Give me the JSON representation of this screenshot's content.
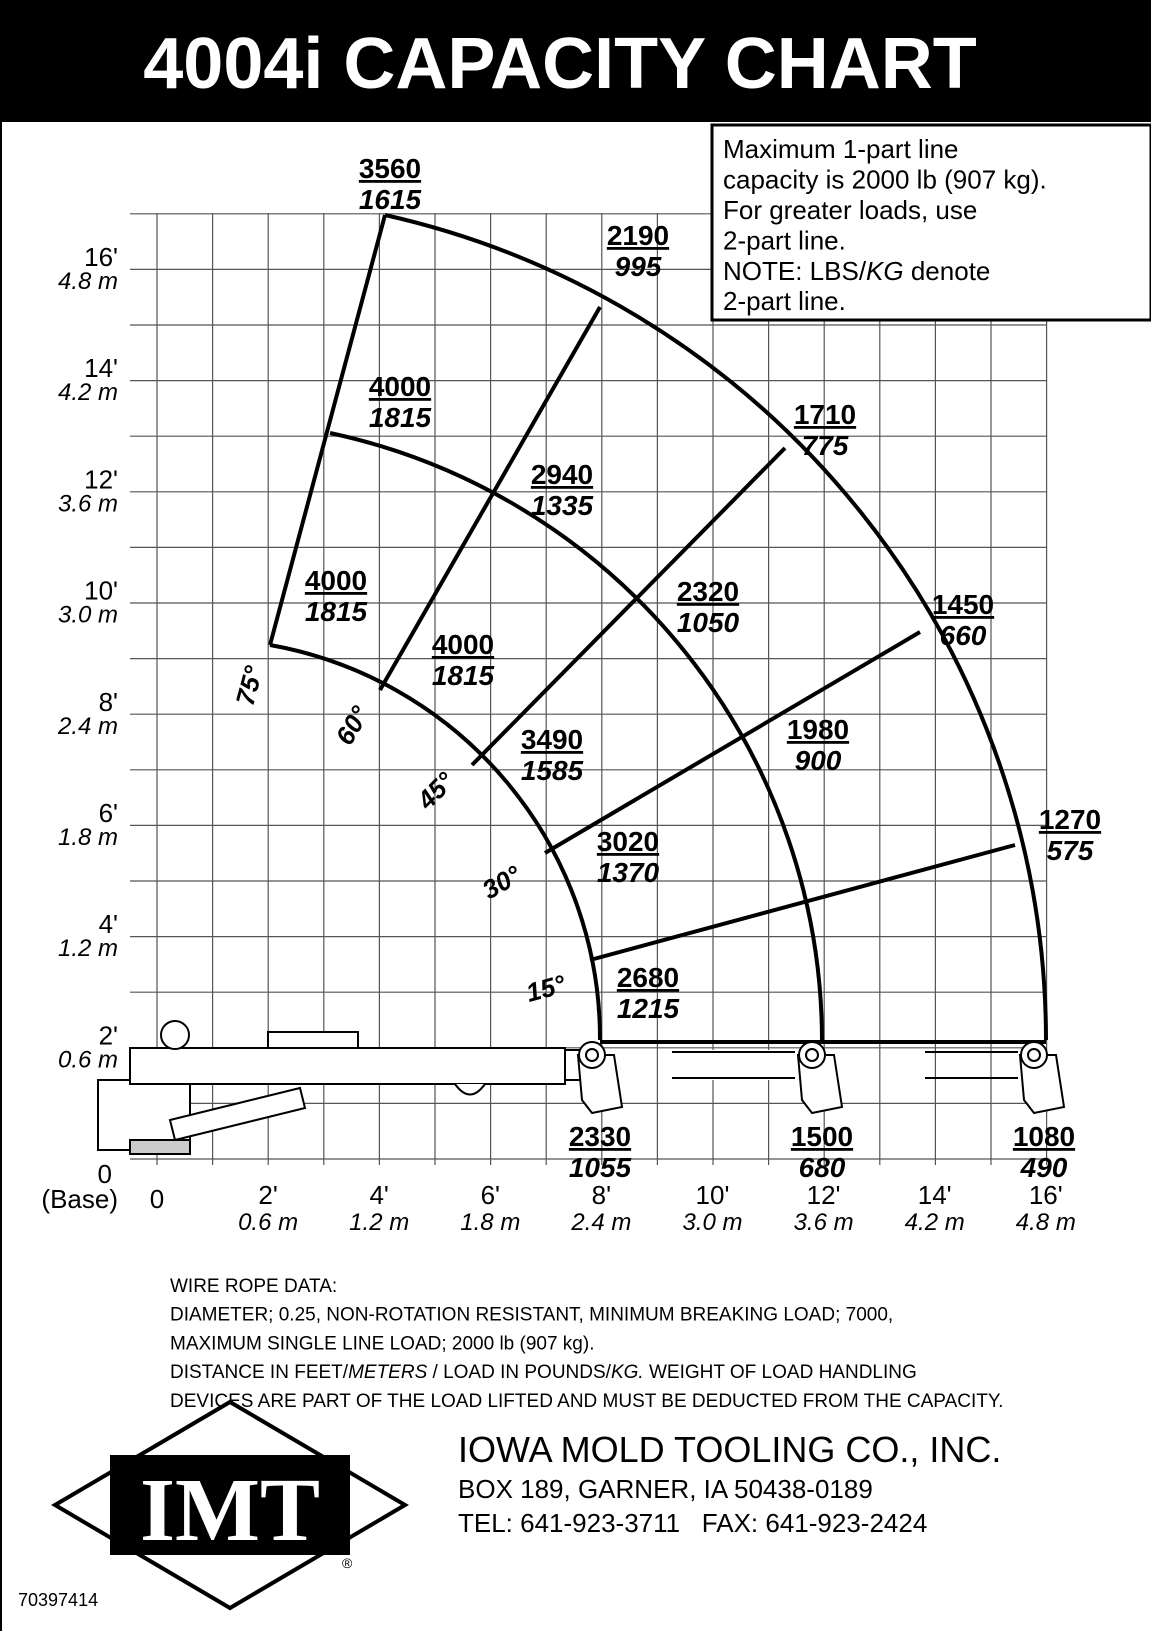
{
  "header": {
    "title": "4004i CAPACITY CHART"
  },
  "note": {
    "lines": [
      "Maximum 1-part line",
      "capacity is 2000 lb (907 kg).",
      "For greater loads, use",
      "2-part line."
    ],
    "note_prefix": "NOTE: LBS/",
    "note_kg": "KG",
    "note_suffix": " denote",
    "note_last": "2-part line."
  },
  "capacities": [
    {
      "lb": "3560",
      "kg": "1615"
    },
    {
      "lb": "2190",
      "kg": "995"
    },
    {
      "lb": "4000",
      "kg": "1815"
    },
    {
      "lb": "1710",
      "kg": "775"
    },
    {
      "lb": "2940",
      "kg": "1335"
    },
    {
      "lb": "4000",
      "kg": "1815"
    },
    {
      "lb": "2320",
      "kg": "1050"
    },
    {
      "lb": "1450",
      "kg": "660"
    },
    {
      "lb": "4000",
      "kg": "1815"
    },
    {
      "lb": "1980",
      "kg": "900"
    },
    {
      "lb": "3490",
      "kg": "1585"
    },
    {
      "lb": "1270",
      "kg": "575"
    },
    {
      "lb": "3020",
      "kg": "1370"
    },
    {
      "lb": "2680",
      "kg": "1215"
    },
    {
      "lb": "2330",
      "kg": "1055"
    },
    {
      "lb": "1500",
      "kg": "680"
    },
    {
      "lb": "1080",
      "kg": "490"
    }
  ],
  "angles": [
    "75°",
    "60°",
    "45°",
    "30°",
    "15°"
  ],
  "y_axis": [
    {
      "ft": "16'",
      "m": "4.8 m"
    },
    {
      "ft": "14'",
      "m": "4.2 m"
    },
    {
      "ft": "12'",
      "m": "3.6 m"
    },
    {
      "ft": "10'",
      "m": "3.0 m"
    },
    {
      "ft": "8'",
      "m": "2.4 m"
    },
    {
      "ft": "6'",
      "m": "1.8 m"
    },
    {
      "ft": "4'",
      "m": "1.2 m"
    },
    {
      "ft": "2'",
      "m": "0.6 m"
    }
  ],
  "y_base": {
    "ft": "0",
    "label": "(Base)"
  },
  "x_axis": [
    {
      "ft": "0",
      "m": null
    },
    {
      "ft": "2'",
      "m": "0.6 m"
    },
    {
      "ft": "4'",
      "m": "1.2 m"
    },
    {
      "ft": "6'",
      "m": "1.8 m"
    },
    {
      "ft": "8'",
      "m": "2.4 m"
    },
    {
      "ft": "10'",
      "m": "3.0 m"
    },
    {
      "ft": "12'",
      "m": "3.6 m"
    },
    {
      "ft": "14'",
      "m": "4.2 m"
    },
    {
      "ft": "16'",
      "m": "4.8 m"
    }
  ],
  "wire_rope": {
    "lines": [
      "WIRE ROPE DATA:",
      "DIAMETER; 0.25, NON-ROTATION RESISTANT, MINIMUM BREAKING LOAD; 7000,",
      "MAXIMUM SINGLE LINE LOAD; 2000 lb (907 kg)."
    ],
    "line4": [
      "DISTANCE IN FEET/",
      "METERS",
      " / LOAD IN POUNDS/",
      "KG.",
      " WEIGHT OF LOAD HANDLING"
    ],
    "line5": "DEVICES ARE PART OF THE LOAD LIFTED AND MUST BE DEDUCTED FROM THE CAPACITY."
  },
  "company": {
    "name": "IOWA MOLD TOOLING CO., INC.",
    "address": "BOX 189, GARNER, IA 50438-0189",
    "phone": "TEL: 641-923-3711   FAX: 641-923-2424",
    "logo": "IMT",
    "registered": "®"
  },
  "part_number": "70397414"
}
